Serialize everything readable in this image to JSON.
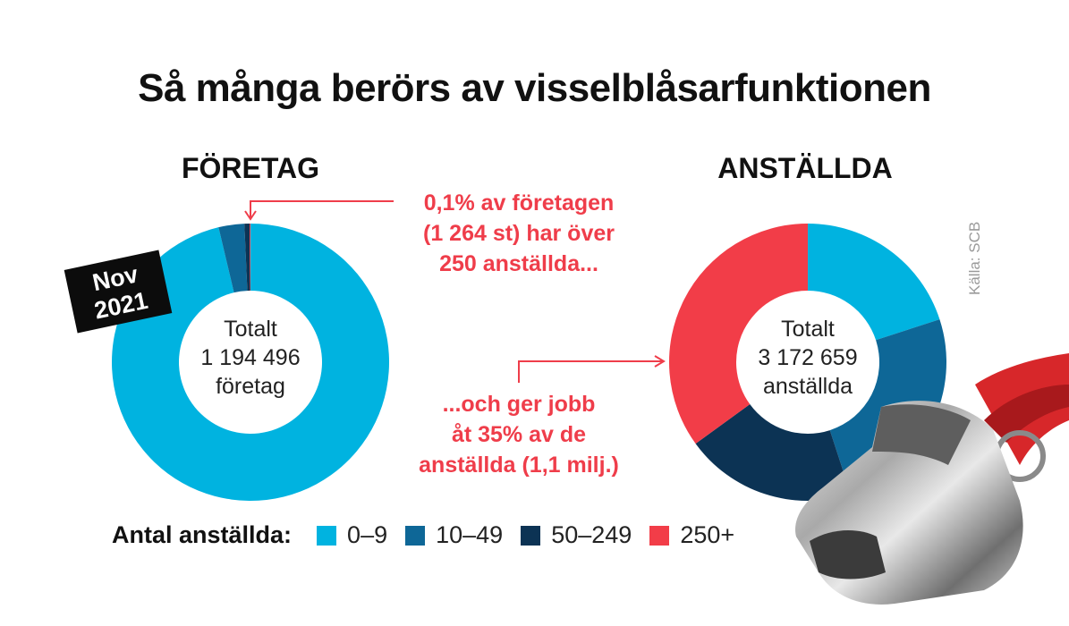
{
  "title": "Så många berörs av visselblåsarfunktionen",
  "badge": {
    "line1": "Nov",
    "line2": "2021"
  },
  "source": "Källa: SCB",
  "colors": {
    "c0_9": "#00b3e0",
    "c10_49": "#0e6797",
    "c50_249": "#0c3354",
    "c250": "#f23d48",
    "accent": "#ef3d4a"
  },
  "legend": {
    "title": "Antal anställda:",
    "items": [
      {
        "label": "0–9",
        "color": "#00b3e0"
      },
      {
        "label": "10–49",
        "color": "#0e6797"
      },
      {
        "label": "50–249",
        "color": "#0c3354"
      },
      {
        "label": "250+",
        "color": "#f23d48"
      }
    ]
  },
  "annotations": {
    "top": {
      "line1": "0,1% av företagen",
      "line2": "(1 264 st) har över",
      "line3": "250 anställda..."
    },
    "bottom": {
      "line1": "...och ger jobb",
      "line2": "åt 35% av de",
      "line3": "anställda (1,1 milj.)"
    }
  },
  "chart_data": [
    {
      "type": "pie",
      "subtype": "donut",
      "title": "FÖRETAG",
      "center": {
        "line1": "Totalt",
        "line2": "1 194 496",
        "line3": "företag"
      },
      "categories": [
        "0–9",
        "10–49",
        "50–249",
        "250+"
      ],
      "values": [
        96.3,
        3.0,
        0.6,
        0.1
      ],
      "unit": "%"
    },
    {
      "type": "pie",
      "subtype": "donut",
      "title": "ANSTÄLLDA",
      "center": {
        "line1": "Totalt",
        "line2": "3 172 659",
        "line3": "anställda"
      },
      "categories": [
        "0–9",
        "10–49",
        "50–249",
        "250+"
      ],
      "values": [
        20,
        25,
        20,
        35
      ],
      "unit": "%"
    }
  ]
}
